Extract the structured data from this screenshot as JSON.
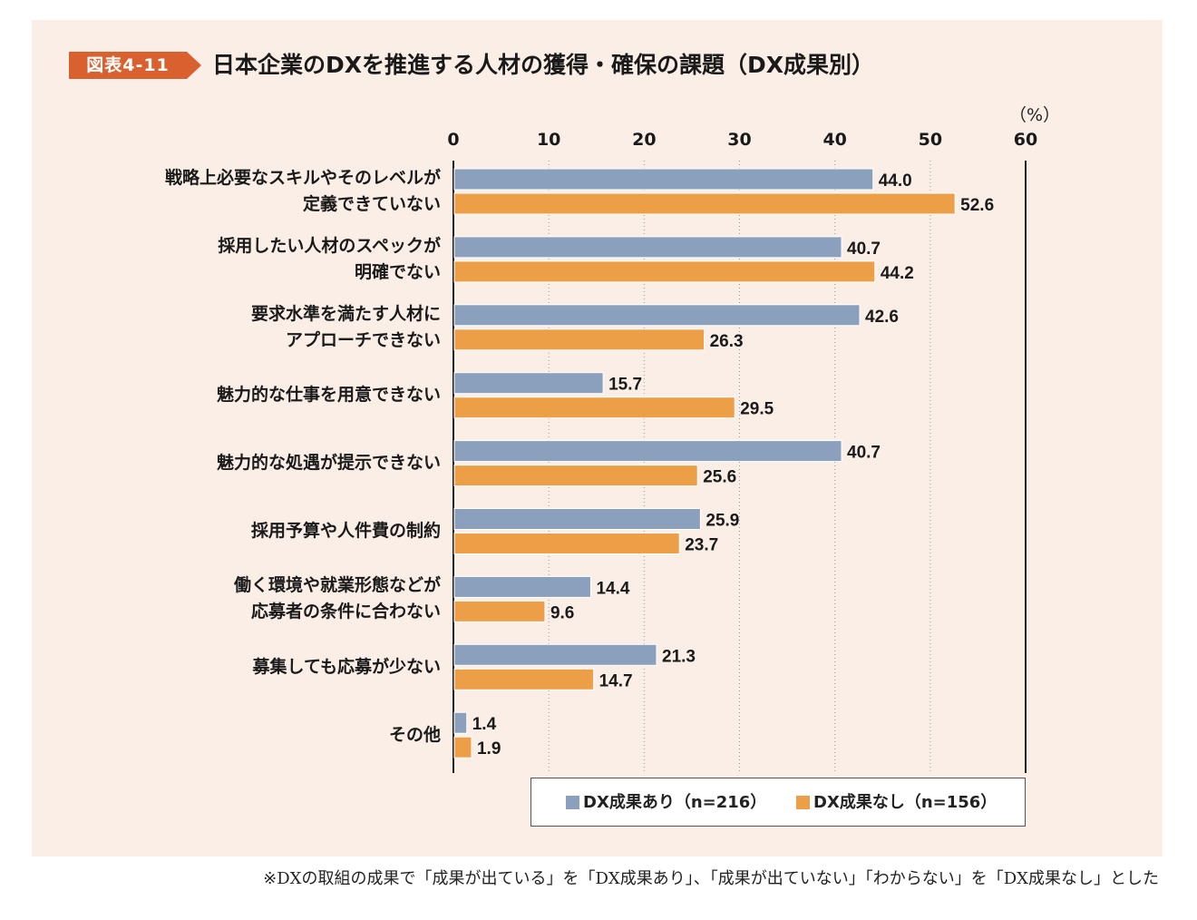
{
  "figure_label": "図表4-11",
  "colors": {
    "series1": "#8aa0bc",
    "series2": "#ec9f47",
    "badge": "#d9602f",
    "panel": "#faeee7"
  },
  "chart_data": {
    "type": "bar",
    "orientation": "horizontal",
    "title": "日本企業のDXを推進する人材の獲得・確保の課題（DX成果別）",
    "unit_label": "（%）",
    "xlim": [
      0,
      60
    ],
    "x_ticks": [
      "0",
      "10",
      "20",
      "30",
      "40",
      "50",
      "60"
    ],
    "categories": [
      [
        "戦略上必要なスキルやそのレベルが",
        "定義できていない"
      ],
      [
        "採用したい人材のスペックが",
        "明確でない"
      ],
      [
        "要求水準を満たす人材に",
        "アプローチできない"
      ],
      [
        "魅力的な仕事を用意できない"
      ],
      [
        "魅力的な処遇が提示できない"
      ],
      [
        "採用予算や人件費の制約"
      ],
      [
        "働く環境や就業形態などが",
        "応募者の条件に合わない"
      ],
      [
        "募集しても応募が少ない"
      ],
      [
        "その他"
      ]
    ],
    "series": [
      {
        "name": "DX成果あり（n=216）",
        "values": [
          44.0,
          40.7,
          42.6,
          15.7,
          40.7,
          25.9,
          14.4,
          21.3,
          1.4
        ]
      },
      {
        "name": "DX成果なし（n=156）",
        "values": [
          52.6,
          44.2,
          26.3,
          29.5,
          25.6,
          23.7,
          9.6,
          14.7,
          1.9
        ]
      }
    ],
    "legend_position": "bottom-right"
  },
  "footnote": "※DXの取組の成果で「成果が出ている」を「DX成果あり」、「成果が出ていない」「わからない」を「DX成果なし」とした"
}
